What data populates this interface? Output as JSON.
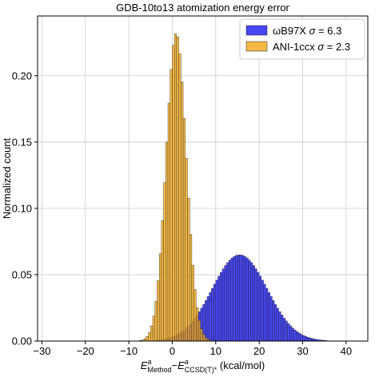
{
  "chart_data": {
    "type": "histogram",
    "title": "GDB-10to13 atomization energy error",
    "xlabel": {
      "main": "E",
      "sup1": "a",
      "sub1": "Method",
      "dash": "−",
      "sup2": "a",
      "sub2": "CCSD(T)*",
      "units": "(kcal/mol)"
    },
    "ylabel": "Normalized count",
    "xlim": [
      -31,
      45
    ],
    "ylim": [
      0,
      0.245
    ],
    "xticks": [
      -30,
      -20,
      -10,
      0,
      10,
      20,
      30,
      40
    ],
    "yticks": [
      0.0,
      0.05,
      0.1,
      0.15,
      0.2
    ],
    "ytick_labels": [
      "0.00",
      "0.05",
      "0.10",
      "0.15",
      "0.20"
    ],
    "grid": true,
    "legend_position": "top-right",
    "series": [
      {
        "name": "ωB97X σ = 6.3",
        "legend": {
          "prefix": "ωB97X ",
          "sigma": "σ",
          "suffix": " = 6.3"
        },
        "color": "#2626f0",
        "alpha": 0.85,
        "bin_width": 0.5,
        "mean": 15.5,
        "sigma": 6.3,
        "peak": 0.065,
        "range": [
          -4,
          38
        ]
      },
      {
        "name": "ANI-1ccx σ = 2.3",
        "legend": {
          "prefix": "ANI-1ccx ",
          "sigma": "σ",
          "suffix": " = 2.3"
        },
        "color": "#f2a81d",
        "alpha": 0.82,
        "bin_width": 0.5,
        "mean": 0.9,
        "sigma": 2.3,
        "peak": 0.232,
        "range": [
          -12,
          11
        ]
      }
    ]
  }
}
